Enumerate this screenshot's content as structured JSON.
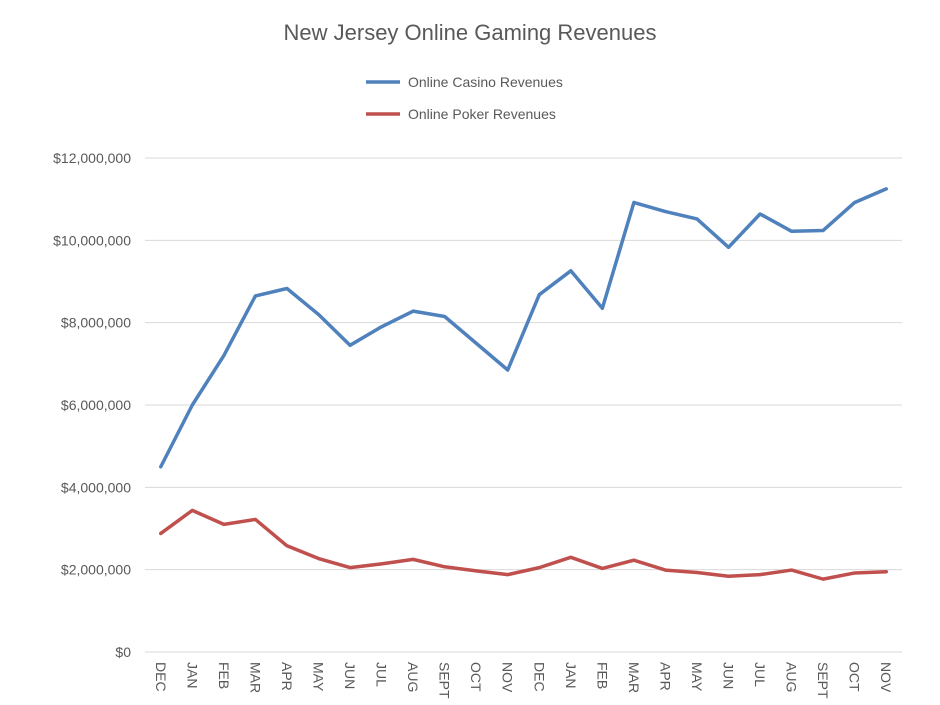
{
  "colors": {
    "casino": "#4f81bd",
    "poker": "#c0504d",
    "grid": "#d9d9d9",
    "text": "#595959"
  },
  "chart_data": {
    "type": "line",
    "title": "New Jersey Online Gaming Revenues",
    "xlabel": "",
    "ylabel": "",
    "categories": [
      "DEC",
      "JAN",
      "FEB",
      "MAR",
      "APR",
      "MAY",
      "JUN",
      "JUL",
      "AUG",
      "SEPT",
      "OCT",
      "NOV",
      "DEC",
      "JAN",
      "FEB",
      "MAR",
      "APR",
      "MAY",
      "JUN",
      "JUL",
      "AUG",
      "SEPT",
      "OCT",
      "NOV"
    ],
    "series": [
      {
        "name": "Online Casino Revenues",
        "color": "#4f81bd",
        "values": [
          4500000,
          6000000,
          7200000,
          8650000,
          8830000,
          8200000,
          7450000,
          7900000,
          8280000,
          8150000,
          7500000,
          6850000,
          8680000,
          9260000,
          8350000,
          10920000,
          10700000,
          10520000,
          9830000,
          10640000,
          10220000,
          10240000,
          10920000,
          11250000
        ]
      },
      {
        "name": "Online Poker Revenues",
        "color": "#c0504d",
        "values": [
          2880000,
          3440000,
          3100000,
          3220000,
          2580000,
          2270000,
          2050000,
          2140000,
          2250000,
          2070000,
          1970000,
          1880000,
          2050000,
          2300000,
          2030000,
          2230000,
          1990000,
          1930000,
          1840000,
          1880000,
          1990000,
          1770000,
          1920000,
          1950000
        ]
      }
    ],
    "yticks": [
      "$0",
      "$2,000,000",
      "$4,000,000",
      "$6,000,000",
      "$8,000,000",
      "$10,000,000",
      "$12,000,000"
    ],
    "ylim": [
      0,
      12000000
    ],
    "grid": true,
    "legend_position": "top-center"
  }
}
